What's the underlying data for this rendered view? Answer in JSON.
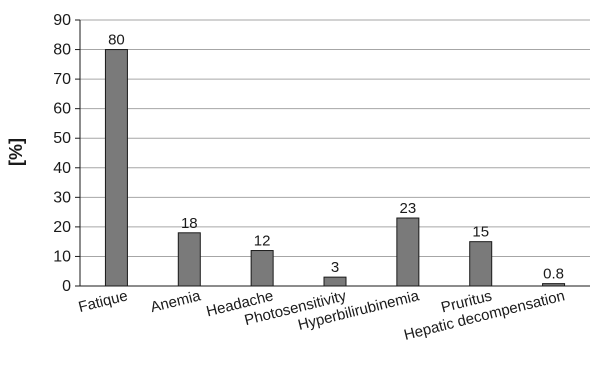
{
  "chart_data": {
    "type": "bar",
    "categories": [
      "Fatique",
      "Anemia",
      "Headache",
      "Photosensitivity",
      "Hyperbilirubinemia",
      "Pruritus",
      "Hepatic decompensation"
    ],
    "values": [
      80,
      18,
      12,
      3,
      23,
      15,
      0.8
    ],
    "data_labels": [
      "80",
      "18",
      "12",
      "3",
      "23",
      "15",
      "0.8"
    ],
    "ylabel": "[%]",
    "xlabel": "",
    "ylim": [
      0,
      90
    ],
    "yticks": [
      0,
      10,
      20,
      30,
      40,
      50,
      60,
      70,
      80,
      90
    ],
    "grid": "horizontal",
    "bar_color": "#7a7a7a",
    "bar_stroke": "#1a1a1a",
    "grid_color": "#a6a6a6"
  }
}
